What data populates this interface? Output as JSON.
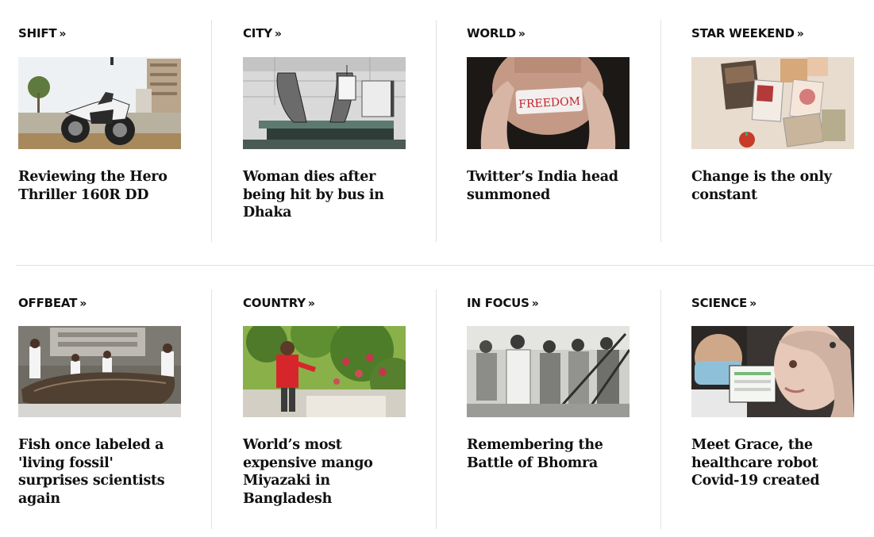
{
  "sections": [
    {
      "category": "SHIFT",
      "title": "Reviewing the Hero Thriller 160R DD",
      "image": "motorcycle"
    },
    {
      "category": "CITY",
      "title": "Woman dies after being hit by bus in Dhaka",
      "image": "morgue-feet"
    },
    {
      "category": "WORLD",
      "title": "Twitter’s India head summoned",
      "image": "freedom-tape"
    },
    {
      "category": "STAR WEEKEND",
      "title": "Change is the only constant",
      "image": "magazines-collage"
    },
    {
      "category": "OFFBEAT",
      "title": "Fish once labeled a 'living fossil' surprises scientists again",
      "image": "coelacanth"
    },
    {
      "category": "COUNTRY",
      "title": "World’s most expensive mango Miyazaki in Bangladesh",
      "image": "mango-tree"
    },
    {
      "category": "IN FOCUS",
      "title": "Remembering the Battle of Bhomra",
      "image": "soldiers-bw"
    },
    {
      "category": "SCIENCE",
      "title": "Meet Grace, the healthcare robot Covid-19 created",
      "image": "robot-grace"
    }
  ],
  "tape_text": "FREEDOM",
  "chevron_glyph": "»"
}
